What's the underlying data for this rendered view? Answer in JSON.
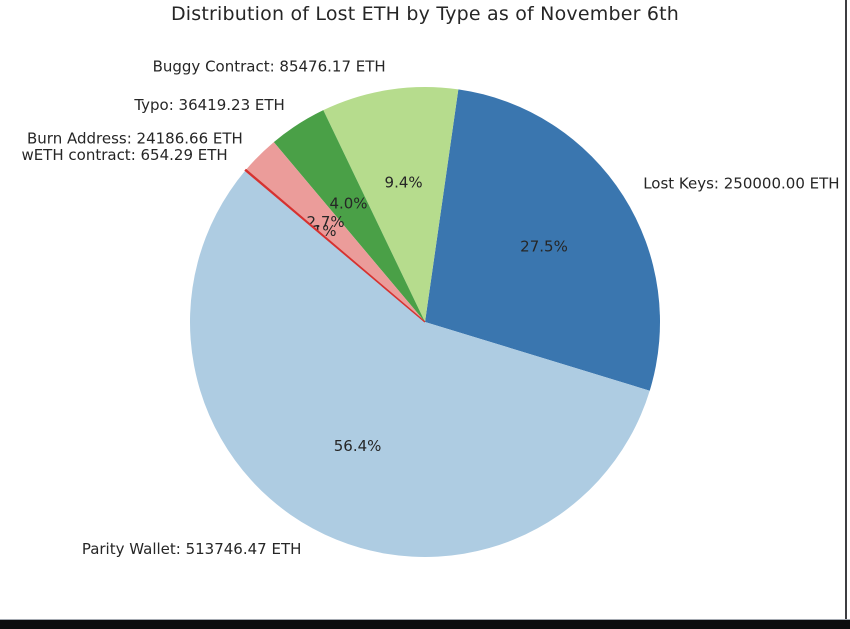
{
  "chart_data": {
    "type": "pie",
    "title": "Distribution of Lost ETH by Type as of November 6th",
    "unit": "ETH",
    "start_angle_deg": -17,
    "counterclockwise": true,
    "label_distance": 1.1,
    "pct_distance": 0.6,
    "slices": [
      {
        "label": "Lost Keys",
        "value": 250000.0,
        "display": "Lost Keys: 250000.00 ETH",
        "pct_label": "27.5%",
        "color": "#3a76af"
      },
      {
        "label": "Buggy Contract",
        "value": 85476.17,
        "display": "Buggy Contract: 85476.17 ETH",
        "pct_label": "9.4%",
        "color": "#b6dc8d"
      },
      {
        "label": "Typo",
        "value": 36419.23,
        "display": "Typo: 36419.23 ETH",
        "pct_label": "4.0%",
        "color": "#4aa047"
      },
      {
        "label": "Burn Address",
        "value": 24186.66,
        "display": "Burn Address: 24186.66 ETH",
        "pct_label": "2.7%",
        "color": "#eb9c9a"
      },
      {
        "label": "wETH contract",
        "value": 654.29,
        "display": "wETH contract: 654.29 ETH",
        "pct_label": "0.1%",
        "color": "#d63230"
      },
      {
        "label": "Parity Wallet",
        "value": 513746.47,
        "display": "Parity Wallet: 513746.47 ETH",
        "pct_label": "56.4%",
        "color": "#aecce2"
      }
    ],
    "text_color": "#262626"
  }
}
